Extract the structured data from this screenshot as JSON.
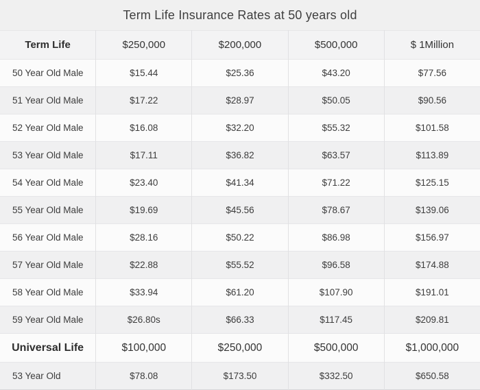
{
  "title": "Term Life Insurance Rates at 50 years old",
  "colors": {
    "page_background": "#f0f0f0",
    "header_row_background": "#f3f3f4",
    "row_light": "#fbfbfb",
    "row_dark": "#f0f0f1",
    "border": "#e1e1e3",
    "text": "#3c3c3c"
  },
  "table": {
    "header": {
      "label": "Term Life",
      "columns": [
        "$250,000",
        "$200,000",
        "$500,000",
        "$ 1Million"
      ]
    },
    "rows": [
      {
        "label": "50 Year Old Male",
        "values": [
          "$15.44",
          "$25.36",
          "$43.20",
          "$77.56"
        ]
      },
      {
        "label": "51 Year Old Male",
        "values": [
          "$17.22",
          "$28.97",
          "$50.05",
          "$90.56"
        ]
      },
      {
        "label": "52 Year Old Male",
        "values": [
          "$16.08",
          "$32.20",
          "$55.32",
          "$101.58"
        ]
      },
      {
        "label": "53 Year Old Male",
        "values": [
          "$17.11",
          "$36.82",
          "$63.57",
          "$113.89"
        ]
      },
      {
        "label": "54 Year Old Male",
        "values": [
          "$23.40",
          "$41.34",
          "$71.22",
          "$125.15"
        ]
      },
      {
        "label": "55 Year Old Male",
        "values": [
          "$19.69",
          "$45.56",
          "$78.67",
          "$139.06"
        ]
      },
      {
        "label": "56 Year Old Male",
        "values": [
          "$28.16",
          "$50.22",
          "$86.98",
          "$156.97"
        ]
      },
      {
        "label": "57 Year Old Male",
        "values": [
          "$22.88",
          "$55.52",
          "$96.58",
          "$174.88"
        ]
      },
      {
        "label": "58 Year Old Male",
        "values": [
          "$33.94",
          "$61.20",
          "$107.90",
          "$191.01"
        ]
      },
      {
        "label": "59 Year Old Male",
        "values": [
          "$26.80s",
          "$66.33",
          "$117.45",
          "$209.81"
        ]
      }
    ],
    "universal": {
      "label": "Universal Life",
      "columns": [
        "$100,000",
        "$250,000",
        "$500,000",
        "$1,000,000"
      ]
    },
    "universal_rows": [
      {
        "label": "53 Year Old",
        "values": [
          "$78.08",
          "$173.50",
          "$332.50",
          "$650.58"
        ]
      }
    ]
  },
  "chart_data": {
    "type": "table",
    "title": "Term Life Insurance Rates at 50 years old",
    "sections": [
      {
        "header": [
          "Term Life",
          "$250,000",
          "$200,000",
          "$500,000",
          "$ 1Million"
        ],
        "rows": [
          [
            "50 Year Old Male",
            15.44,
            25.36,
            43.2,
            77.56
          ],
          [
            "51 Year Old Male",
            17.22,
            28.97,
            50.05,
            90.56
          ],
          [
            "52 Year Old Male",
            16.08,
            32.2,
            55.32,
            101.58
          ],
          [
            "53 Year Old Male",
            17.11,
            36.82,
            63.57,
            113.89
          ],
          [
            "54 Year Old Male",
            23.4,
            41.34,
            71.22,
            125.15
          ],
          [
            "55 Year Old Male",
            19.69,
            45.56,
            78.67,
            139.06
          ],
          [
            "56 Year Old Male",
            28.16,
            50.22,
            86.98,
            156.97
          ],
          [
            "57 Year Old Male",
            22.88,
            55.52,
            96.58,
            174.88
          ],
          [
            "58 Year Old Male",
            33.94,
            61.2,
            107.9,
            191.01
          ],
          [
            "59 Year Old Male",
            26.8,
            66.33,
            117.45,
            209.81
          ]
        ]
      },
      {
        "header": [
          "Universal Life",
          "$100,000",
          "$250,000",
          "$500,000",
          "$1,000,000"
        ],
        "rows": [
          [
            "53 Year Old",
            78.08,
            173.5,
            332.5,
            650.58
          ]
        ]
      }
    ]
  }
}
